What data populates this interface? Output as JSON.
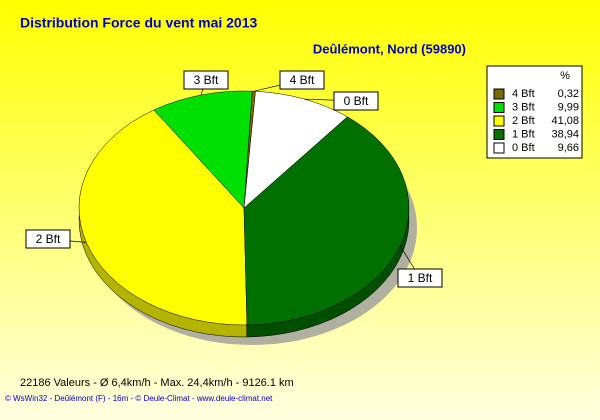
{
  "chart_data": {
    "type": "pie",
    "title": "Distribution Force du vent  mai 2013",
    "subtitle": "Deûlémont, Nord (59890)",
    "categories": [
      "4 Bft",
      "3 Bft",
      "2 Bft",
      "1 Bft",
      "0 Bft"
    ],
    "values": [
      0.32,
      9.99,
      41.08,
      38.94,
      9.66
    ],
    "value_labels": [
      "0,32",
      "9,99",
      "41,08",
      "38,94",
      "9,66"
    ],
    "colors": [
      "#7a6a00",
      "#00e000",
      "#ffff00",
      "#007000",
      "#ffffff"
    ],
    "legend_title": "%",
    "footer": "22186 Valeurs   -    Ø 6,4km/h  -  Max. 24,4km/h  -   9126.1 km",
    "credit": "© WsWin32  -  Deûlémont (F) - 16m  -  © Deule-Climat - www.deule-climat.net"
  }
}
